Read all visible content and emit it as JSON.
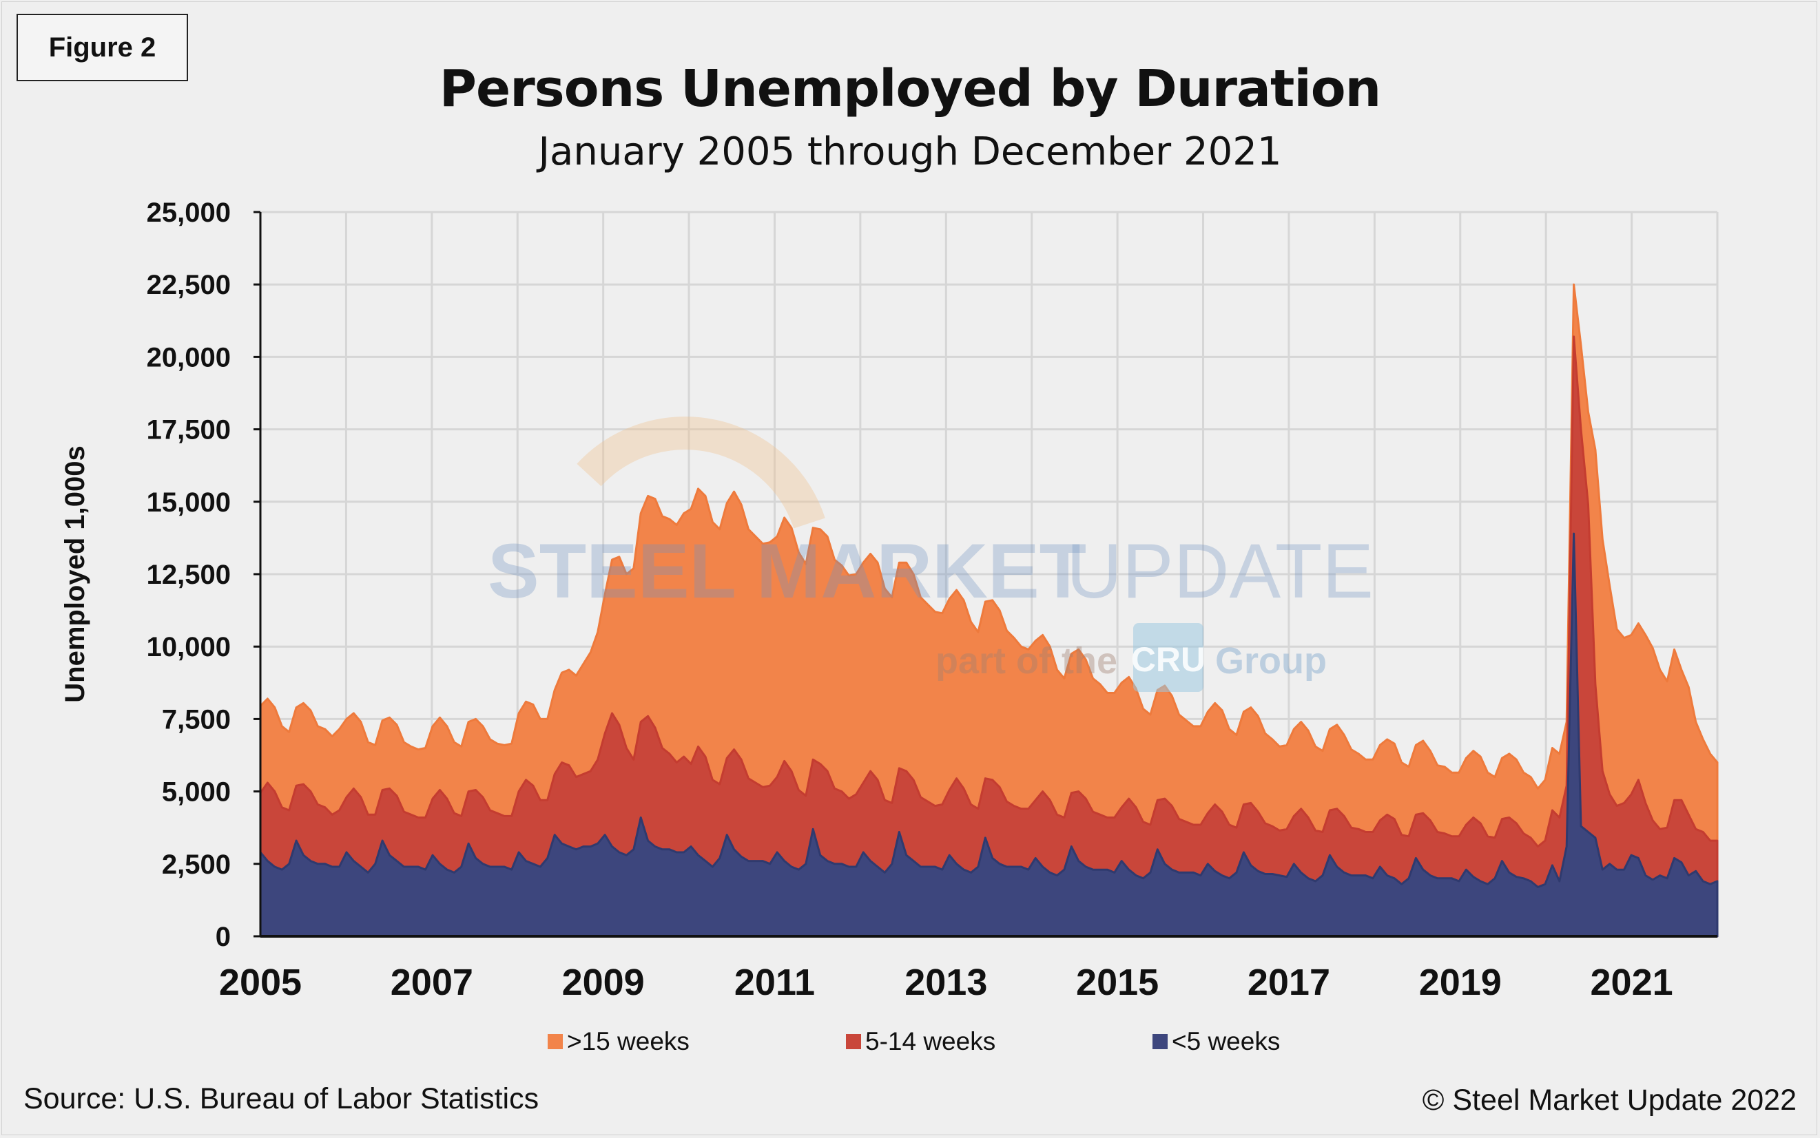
{
  "figure_label": "Figure 2",
  "footer": {
    "source": "Source: U.S. Bureau of Labor Statistics",
    "copyright": "© Steel Market Update 2022"
  },
  "watermark": {
    "brand_bold": "STEEL MARKET",
    "brand_light": "UPDATE",
    "tagline": "part of the",
    "cru": "CRU",
    "group": "Group"
  },
  "colors": {
    "gt15": "#f2844a",
    "w5_14": "#c9463a",
    "lt5": "#3d467d",
    "background": "#efefef"
  },
  "chart_data": {
    "type": "area",
    "stacked": true,
    "title": "Persons Unemployed by Duration",
    "subtitle": "January 2005 through December 2021",
    "ylabel": "Unemployed 1,000s",
    "xlabel": "",
    "ylim": [
      0,
      25000
    ],
    "yticks": [
      "0",
      "2,500",
      "5,000",
      "7,500",
      "10,000",
      "12,500",
      "15,000",
      "17,500",
      "20,000",
      "22,500",
      "25,000"
    ],
    "xticks": [
      "2005",
      "2007",
      "2009",
      "2011",
      "2013",
      "2015",
      "2017",
      "2019",
      "2021"
    ],
    "x_start": "2005-01",
    "x_end": "2021-12",
    "frequency": "monthly",
    "grid": true,
    "legend_placement": "bottom",
    "series": [
      {
        "name": "<5 weeks",
        "values": [
          2900,
          2600,
          2400,
          2300,
          2500,
          3300,
          2800,
          2600,
          2500,
          2500,
          2400,
          2400,
          2900,
          2600,
          2400,
          2200,
          2500,
          3300,
          2800,
          2600,
          2400,
          2400,
          2400,
          2300,
          2800,
          2500,
          2300,
          2200,
          2400,
          3200,
          2700,
          2500,
          2400,
          2400,
          2400,
          2300,
          2900,
          2600,
          2500,
          2400,
          2700,
          3500,
          3200,
          3100,
          3000,
          3100,
          3100,
          3200,
          3500,
          3100,
          2900,
          2800,
          3000,
          4100,
          3300,
          3100,
          3000,
          3000,
          2900,
          2900,
          3100,
          2800,
          2600,
          2400,
          2700,
          3500,
          3000,
          2750,
          2600,
          2600,
          2600,
          2500,
          2900,
          2600,
          2400,
          2300,
          2500,
          3700,
          2800,
          2600,
          2500,
          2500,
          2400,
          2400,
          2900,
          2600,
          2400,
          2200,
          2500,
          3600,
          2800,
          2600,
          2400,
          2400,
          2400,
          2300,
          2800,
          2500,
          2300,
          2200,
          2400,
          3400,
          2700,
          2500,
          2400,
          2400,
          2400,
          2300,
          2700,
          2400,
          2200,
          2100,
          2300,
          3100,
          2600,
          2400,
          2300,
          2300,
          2300,
          2200,
          2600,
          2300,
          2100,
          2000,
          2200,
          3000,
          2500,
          2300,
          2200,
          2200,
          2200,
          2100,
          2500,
          2250,
          2100,
          2000,
          2200,
          2900,
          2450,
          2250,
          2150,
          2150,
          2100,
          2050,
          2500,
          2200,
          2000,
          1900,
          2100,
          2800,
          2400,
          2200,
          2100,
          2100,
          2100,
          2000,
          2400,
          2100,
          2000,
          1800,
          2000,
          2700,
          2300,
          2100,
          2000,
          2000,
          2000,
          1900,
          2300,
          2050,
          1900,
          1800,
          2000,
          2600,
          2200,
          2050,
          2000,
          1900,
          1700,
          1800,
          2450,
          1900,
          3100,
          13900,
          3800,
          3600,
          3400,
          2300,
          2500,
          2300,
          2300,
          2800,
          2700,
          2100,
          1950,
          2100,
          2000,
          2700,
          2550,
          2100,
          2250,
          1900,
          1800,
          1900
        ]
      },
      {
        "name": "5-14 weeks",
        "values": [
          2050,
          2700,
          2600,
          2150,
          1850,
          1900,
          2450,
          2400,
          2050,
          1950,
          1800,
          1950,
          1900,
          2500,
          2400,
          2000,
          1700,
          1750,
          2300,
          2250,
          1900,
          1800,
          1700,
          1800,
          1950,
          2550,
          2450,
          2050,
          1750,
          1800,
          2350,
          2300,
          1950,
          1850,
          1750,
          1850,
          2100,
          2800,
          2700,
          2300,
          2000,
          2100,
          2800,
          2800,
          2500,
          2500,
          2600,
          2900,
          3500,
          4600,
          4400,
          3700,
          3100,
          3300,
          4300,
          4100,
          3500,
          3300,
          3100,
          3300,
          2850,
          3750,
          3600,
          3000,
          2550,
          2650,
          3450,
          3350,
          2850,
          2700,
          2550,
          2700,
          2600,
          3450,
          3300,
          2750,
          2350,
          2400,
          3150,
          3100,
          2600,
          2500,
          2350,
          2500,
          2400,
          3100,
          3000,
          2500,
          2100,
          2200,
          2900,
          2800,
          2400,
          2250,
          2100,
          2250,
          2250,
          2950,
          2800,
          2350,
          2000,
          2050,
          2700,
          2650,
          2250,
          2100,
          2000,
          2100,
          2000,
          2600,
          2500,
          2100,
          1800,
          1850,
          2400,
          2350,
          2000,
          1900,
          1800,
          1900,
          1850,
          2450,
          2350,
          1950,
          1650,
          1700,
          2250,
          2200,
          1850,
          1750,
          1650,
          1750,
          1750,
          2300,
          2200,
          1850,
          1550,
          1650,
          2150,
          2050,
          1750,
          1650,
          1550,
          1650,
          1650,
          2200,
          2100,
          1750,
          1500,
          1550,
          2000,
          1950,
          1650,
          1600,
          1500,
          1600,
          1600,
          2100,
          2050,
          1700,
          1450,
          1500,
          1950,
          1900,
          1600,
          1550,
          1450,
          1550,
          1550,
          2050,
          2000,
          1650,
          1400,
          1450,
          1900,
          1850,
          1550,
          1500,
          1400,
          1500,
          1900,
          2200,
          2100,
          6800,
          13700,
          11300,
          5300,
          3400,
          2400,
          2200,
          2300,
          2100,
          2700,
          2500,
          2050,
          1600,
          1750,
          2000,
          2150,
          2100,
          1450,
          1700,
          1500,
          1400
        ]
      },
      {
        "name": ">15 weeks",
        "values": [
          3000,
          2900,
          2900,
          2800,
          2700,
          2700,
          2800,
          2800,
          2700,
          2700,
          2700,
          2800,
          2700,
          2600,
          2600,
          2500,
          2400,
          2400,
          2450,
          2450,
          2400,
          2350,
          2350,
          2400,
          2500,
          2500,
          2500,
          2450,
          2400,
          2400,
          2450,
          2450,
          2450,
          2400,
          2450,
          2500,
          2700,
          2700,
          2800,
          2800,
          2800,
          2900,
          3100,
          3300,
          3500,
          3800,
          4100,
          4400,
          4800,
          5300,
          5800,
          6000,
          6600,
          7200,
          7600,
          7900,
          8000,
          8100,
          8200,
          8400,
          8800,
          8900,
          9000,
          8900,
          8800,
          8800,
          8900,
          8800,
          8600,
          8500,
          8400,
          8400,
          8300,
          8400,
          8400,
          8200,
          8000,
          8000,
          8100,
          8100,
          7900,
          7800,
          7700,
          7600,
          7600,
          7500,
          7500,
          7300,
          7100,
          7100,
          7200,
          7100,
          6900,
          6800,
          6700,
          6600,
          6600,
          6500,
          6500,
          6300,
          6100,
          6100,
          6200,
          6100,
          5900,
          5800,
          5600,
          5500,
          5500,
          5400,
          5300,
          5000,
          4800,
          4800,
          4900,
          4800,
          4600,
          4500,
          4300,
          4300,
          4300,
          4200,
          4100,
          3900,
          3800,
          3800,
          3900,
          3800,
          3600,
          3500,
          3400,
          3400,
          3500,
          3500,
          3500,
          3300,
          3200,
          3200,
          3300,
          3300,
          3100,
          3000,
          2900,
          2900,
          3000,
          3000,
          3000,
          2900,
          2800,
          2800,
          2900,
          2800,
          2700,
          2600,
          2500,
          2500,
          2600,
          2600,
          2600,
          2500,
          2400,
          2400,
          2500,
          2400,
          2300,
          2300,
          2200,
          2200,
          2300,
          2300,
          2300,
          2200,
          2100,
          2100,
          2200,
          2200,
          2100,
          2100,
          2000,
          2100,
          2150,
          2200,
          2200,
          1800,
          2900,
          3200,
          8100,
          8000,
          7200,
          6100,
          5700,
          5500,
          5400,
          5800,
          5950,
          5500,
          5050,
          5200,
          4500,
          4400,
          3700,
          3200,
          3000,
          2700
        ]
      }
    ]
  }
}
